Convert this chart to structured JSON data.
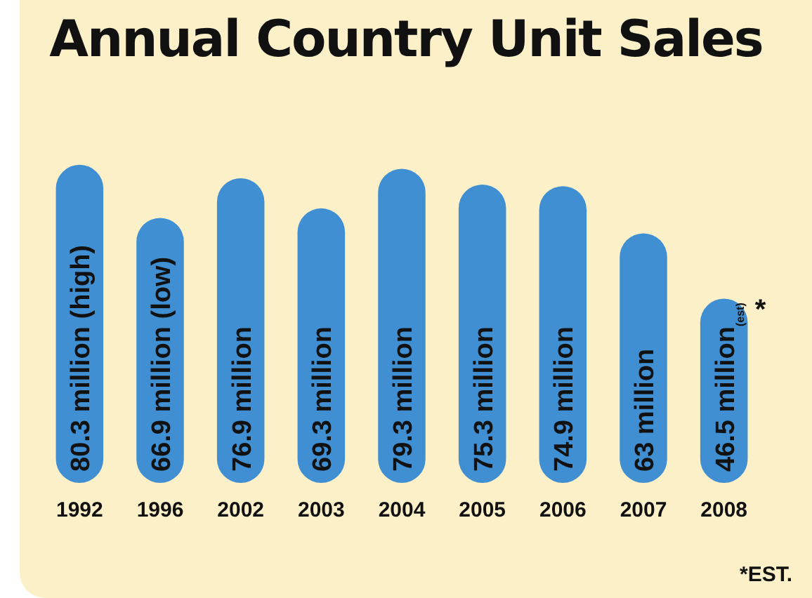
{
  "chart_data": {
    "type": "bar",
    "title": "Annual Country Unit Sales",
    "categories": [
      "1992",
      "1996",
      "2002",
      "2003",
      "2004",
      "2005",
      "2006",
      "2007",
      "2008"
    ],
    "values": [
      80.3,
      66.9,
      76.9,
      69.3,
      79.3,
      75.3,
      74.9,
      63,
      46.5
    ],
    "value_labels": [
      "80.3 million (high)",
      "66.9 million (low)",
      "76.9 million",
      "69.3 million",
      "79.3 million",
      "75.3 million",
      "74.9 million",
      "63 million",
      "46.5 million$_{(est)}$"
    ],
    "color": "#3f8fd2",
    "grid": false,
    "legend": false,
    "tick_labels": "x",
    "annotations": [
      {
        "text": "*",
        "x": "2008",
        "y": 46.5
      },
      "*EST."
    ]
  }
}
